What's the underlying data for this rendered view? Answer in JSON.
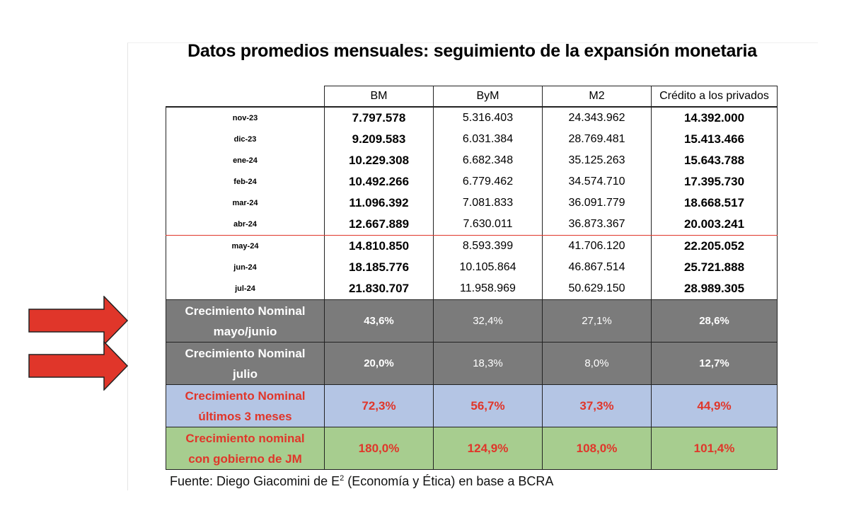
{
  "title": "Datos promedios mensuales: seguimiento de la expansión monetaria",
  "columns": [
    "BM",
    "ByM",
    "M2",
    "Crédito a los privados"
  ],
  "rows": [
    {
      "month": "nov-23",
      "bm": "7.797.578",
      "bym": "5.316.403",
      "m2": "24.343.962",
      "cred": "14.392.000"
    },
    {
      "month": "dic-23",
      "bm": "9.209.583",
      "bym": "6.031.384",
      "m2": "28.769.481",
      "cred": "15.413.466"
    },
    {
      "month": "ene-24",
      "bm": "10.229.308",
      "bym": "6.682.348",
      "m2": "35.125.263",
      "cred": "15.643.788"
    },
    {
      "month": "feb-24",
      "bm": "10.492.266",
      "bym": "6.779.462",
      "m2": "34.574.710",
      "cred": "17.395.730"
    },
    {
      "month": "mar-24",
      "bm": "11.096.392",
      "bym": "7.081.833",
      "m2": "36.091.779",
      "cred": "18.668.517"
    },
    {
      "month": "abr-24",
      "bm": "12.667.889",
      "bym": "7.630.011",
      "m2": "36.873.367",
      "cred": "20.003.241"
    },
    {
      "month": "may-24",
      "bm": "14.810.850",
      "bym": "8.593.399",
      "m2": "41.706.120",
      "cred": "22.205.052"
    },
    {
      "month": "jun-24",
      "bm": "18.185.776",
      "bym": "10.105.864",
      "m2": "46.867.514",
      "cred": "25.721.888"
    },
    {
      "month": "jul-24",
      "bm": "21.830.707",
      "bym": "11.958.969",
      "m2": "50.629.150",
      "cred": "28.989.305"
    }
  ],
  "summary": [
    {
      "l1": "Crecimiento Nominal",
      "l2": "mayo/junio",
      "bm": "43,6%",
      "bym": "32,4%",
      "m2": "27,1%",
      "cred": "28,6%"
    },
    {
      "l1": "Crecimiento Nominal",
      "l2": "julio",
      "bm": "20,0%",
      "bym": "18,3%",
      "m2": "8,0%",
      "cred": "12,7%"
    },
    {
      "l1": "Crecimiento Nominal",
      "l2": "últimos 3 meses",
      "bm": "72,3%",
      "bym": "56,7%",
      "m2": "37,3%",
      "cred": "44,9%"
    },
    {
      "l1": "Crecimiento nominal",
      "l2": "con gobierno de JM",
      "bm": "180,0%",
      "bym": "124,9%",
      "m2": "108,0%",
      "cred": "101,4%"
    }
  ],
  "source": {
    "pre": "Fuente: Diego Giacomini de E",
    "sup": "2",
    "post": " (Economía y Ética) en base a BCRA"
  },
  "colors": {
    "accent_red": "#e0362a",
    "gray_row": "#7b7b7b",
    "blue_row": "#b4c5e4",
    "green_row": "#a7cd8f"
  }
}
